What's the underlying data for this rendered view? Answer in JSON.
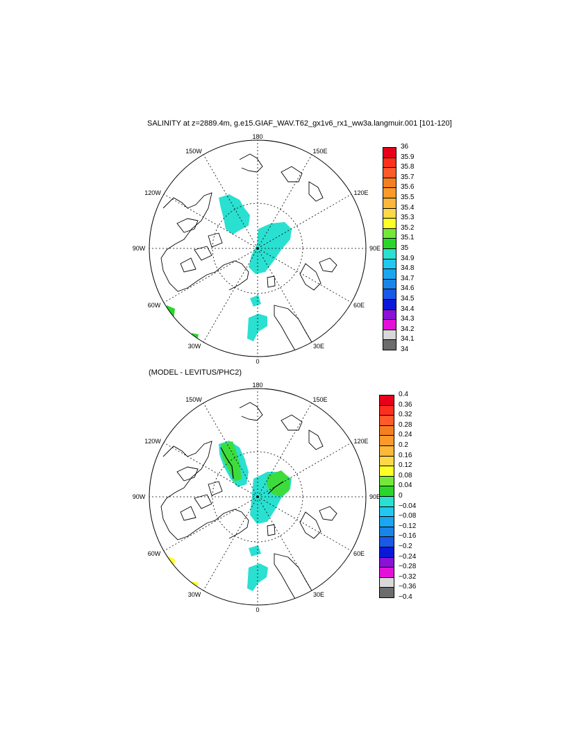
{
  "title": "SALINITY at z=2889.4m, g.e15.GIAF_WAV.T62_gx1v6_rx1_ww3a.langmuir.001 [101-120]",
  "subtitle": "(MODEL - LEVITUS/PHC2)",
  "longitude_labels": {
    "top": "180",
    "bottom": "0",
    "left": "90W",
    "right": "90E",
    "upper_left_inner": "150W",
    "upper_right_inner": "150E",
    "upper_left_outer": "120W",
    "upper_right_outer": "120E",
    "lower_left_outer": "60W",
    "lower_right_outer": "60E",
    "lower_left_inner": "30W",
    "lower_right_inner": "30E"
  },
  "colorbar_top": {
    "labels": [
      "36",
      "35.9",
      "35.8",
      "35.7",
      "35.6",
      "35.5",
      "35.4",
      "35.3",
      "35.2",
      "35.1",
      "35",
      "34.9",
      "34.8",
      "34.7",
      "34.6",
      "34.5",
      "34.4",
      "34.3",
      "34.2",
      "34.1",
      "34"
    ],
    "colors": [
      "#b8000f",
      "#e8001a",
      "#ff2f1e",
      "#ff5a2a",
      "#f57f20",
      "#fb9a2a",
      "#fdb73a",
      "#ffd84a",
      "#ffff28",
      "#73e83a",
      "#2ad62a",
      "#2ae0d0",
      "#22c8f0",
      "#1aa6f0",
      "#1a85e8",
      "#1a58e8",
      "#0c18d8",
      "#8a12d8",
      "#e412d8",
      "#d8d8d8",
      "#6c6c6c"
    ]
  },
  "colorbar_bottom": {
    "labels": [
      "0.4",
      "0.36",
      "0.32",
      "0.28",
      "0.24",
      "0.2",
      "0.16",
      "0.12",
      "0.08",
      "0.04",
      "0",
      "−0.04",
      "−0.08",
      "−0.12",
      "−0.16",
      "−0.2",
      "−0.24",
      "−0.28",
      "−0.32",
      "−0.36",
      "−0.4"
    ],
    "colors": [
      "#b8000f",
      "#e8001a",
      "#ff2f1e",
      "#ff5a2a",
      "#f57f20",
      "#fb9a2a",
      "#fdb73a",
      "#ffd84a",
      "#ffff28",
      "#73e83a",
      "#2ad62a",
      "#2ae0d0",
      "#22c8f0",
      "#1aa6f0",
      "#1a85e8",
      "#1a58e8",
      "#0c18d8",
      "#8a12d8",
      "#e412d8",
      "#d8d8d8",
      "#6c6c6c"
    ]
  },
  "field_colors": {
    "cyan": "#2ae0d0",
    "green": "#3cdc3c",
    "yellow": "#ffff28"
  }
}
